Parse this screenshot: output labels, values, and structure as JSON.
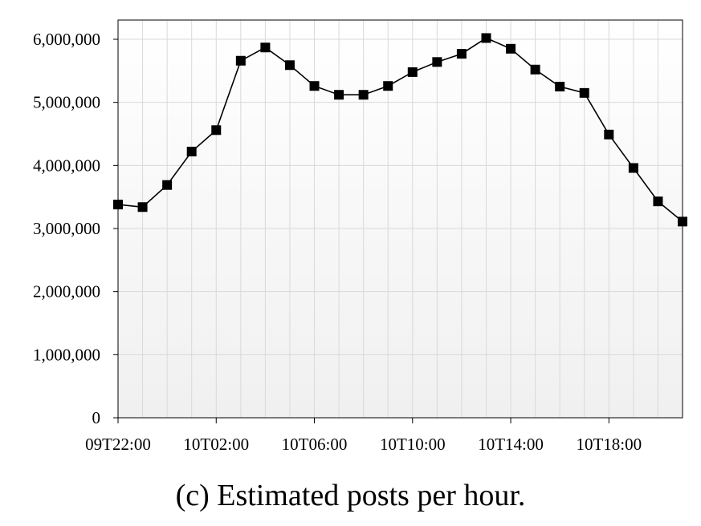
{
  "caption": "(c)  Estimated posts per hour.",
  "chart_data": {
    "type": "line",
    "title": "",
    "xlabel": "",
    "ylabel": "",
    "ylim": [
      0,
      6000000
    ],
    "y_ticks": [
      "0",
      "1,000,000",
      "2,000,000",
      "3,000,000",
      "4,000,000",
      "5,000,000",
      "6,000,000"
    ],
    "y_tick_values": [
      0,
      1000000,
      2000000,
      3000000,
      4000000,
      5000000,
      6000000
    ],
    "x_tick_labels": [
      "09T22:00",
      "10T02:00",
      "10T06:00",
      "10T10:00",
      "10T14:00",
      "10T18:00"
    ],
    "x_tick_indices": [
      0,
      4,
      8,
      12,
      16,
      20
    ],
    "grid": true,
    "marker": "square",
    "series": [
      {
        "values": [
          3380000,
          3340000,
          3690000,
          4220000,
          4560000,
          5660000,
          5870000,
          5590000,
          5260000,
          5120000,
          5120000,
          5260000,
          5480000,
          5640000,
          5770000,
          6020000,
          5850000,
          5520000,
          5250000,
          5150000,
          4490000,
          3960000,
          3430000,
          3110000
        ]
      }
    ],
    "colors": {
      "line": "#000000",
      "marker": "#000000",
      "grid": "#d9d9d9",
      "plot_top": "#ffffff",
      "plot_bottom": "#f2f2f2"
    }
  }
}
